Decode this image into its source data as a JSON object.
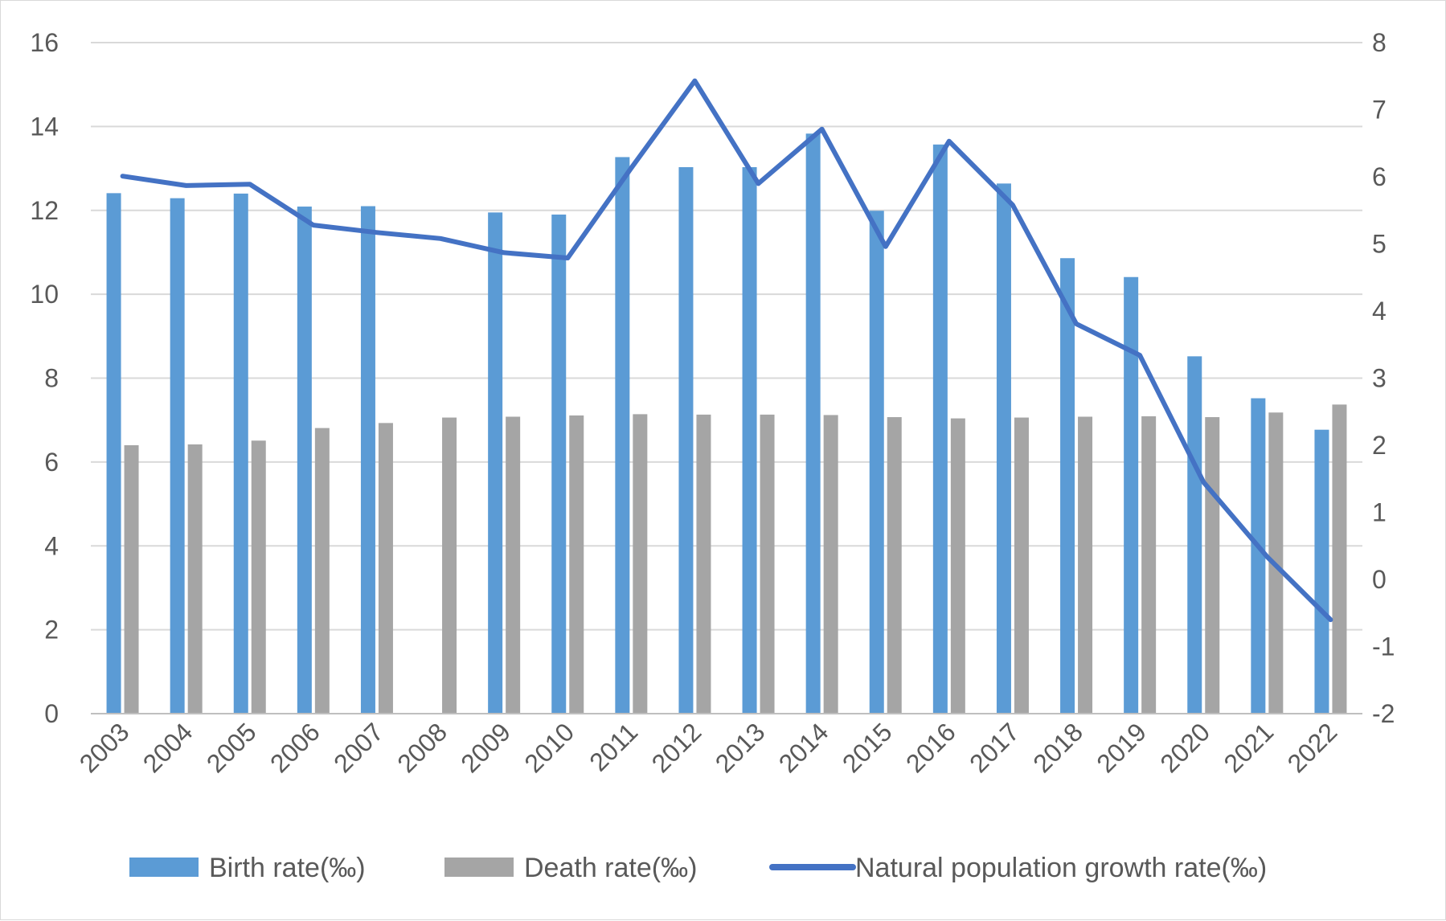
{
  "chart_data": {
    "type": "bar",
    "categories": [
      "2003",
      "2004",
      "2005",
      "2006",
      "2007",
      "2008",
      "2009",
      "2010",
      "2011",
      "2012",
      "2013",
      "2014",
      "2015",
      "2016",
      "2017",
      "2018",
      "2019",
      "2020",
      "2021",
      "2022"
    ],
    "series": [
      {
        "name": "Birth rate(‰)",
        "type": "bar",
        "axis": "left",
        "color": "#5b9bd5",
        "values": [
          12.41,
          12.29,
          12.4,
          12.09,
          12.1,
          null,
          11.95,
          11.9,
          13.27,
          13.03,
          13.03,
          13.83,
          11.99,
          13.57,
          12.64,
          10.86,
          10.41,
          8.52,
          7.52,
          6.77
        ]
      },
      {
        "name": "Death rate(‰)",
        "type": "bar",
        "axis": "left",
        "color": "#a5a5a5",
        "values": [
          6.4,
          6.42,
          6.51,
          6.81,
          6.93,
          7.06,
          7.08,
          7.11,
          7.14,
          7.13,
          7.13,
          7.12,
          7.07,
          7.04,
          7.06,
          7.08,
          7.09,
          7.07,
          7.18,
          7.37
        ]
      },
      {
        "name": "Natural population growth rate(‰)",
        "type": "line",
        "axis": "right",
        "color": "#4472c4",
        "values": [
          6.01,
          5.87,
          5.89,
          5.28,
          5.17,
          5.08,
          4.87,
          4.79,
          6.13,
          7.43,
          5.9,
          6.71,
          4.96,
          6.53,
          5.58,
          3.81,
          3.34,
          1.45,
          0.34,
          -0.6
        ]
      }
    ],
    "y_left": {
      "min": 0,
      "max": 16,
      "ticks": [
        0,
        2,
        4,
        6,
        8,
        10,
        12,
        14,
        16
      ]
    },
    "y_right": {
      "min": -2,
      "max": 8,
      "ticks": [
        -2,
        -1,
        0,
        1,
        2,
        3,
        4,
        5,
        6,
        7,
        8
      ]
    },
    "grid": true,
    "legend": "bottom",
    "title": "",
    "xlabel": "",
    "ylabel": ""
  }
}
